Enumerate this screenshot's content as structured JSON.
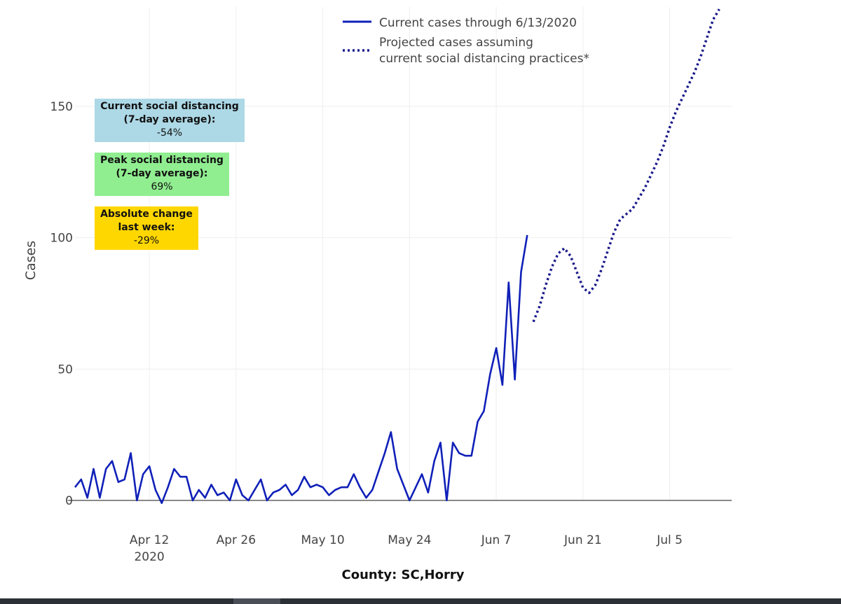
{
  "chart_data": {
    "type": "line",
    "ylabel": "Cases",
    "xlabel": "County: SC,Horry",
    "ylim": [
      0,
      187
    ],
    "xlim": [
      "2020-03-31",
      "2020-07-15"
    ],
    "yticks": [
      0,
      50,
      100,
      150
    ],
    "xticks": [
      {
        "date": "2020-04-12",
        "label": "Apr 12",
        "sub": "2020"
      },
      {
        "date": "2020-04-26",
        "label": "Apr 26",
        "sub": ""
      },
      {
        "date": "2020-05-10",
        "label": "May 10",
        "sub": ""
      },
      {
        "date": "2020-05-24",
        "label": "May 24",
        "sub": ""
      },
      {
        "date": "2020-06-07",
        "label": "Jun 7",
        "sub": ""
      },
      {
        "date": "2020-06-21",
        "label": "Jun 21",
        "sub": ""
      },
      {
        "date": "2020-07-05",
        "label": "Jul 5",
        "sub": ""
      }
    ],
    "grid": true,
    "legend_position": "top",
    "series": [
      {
        "name": "Current cases through 6/13/2020",
        "color": "#1020b8",
        "style": "solid",
        "points": [
          [
            "2020-03-31",
            5
          ],
          [
            "2020-04-01",
            8
          ],
          [
            "2020-04-02",
            1
          ],
          [
            "2020-04-03",
            12
          ],
          [
            "2020-04-04",
            1
          ],
          [
            "2020-04-05",
            12
          ],
          [
            "2020-04-06",
            15
          ],
          [
            "2020-04-07",
            7
          ],
          [
            "2020-04-08",
            8
          ],
          [
            "2020-04-09",
            18
          ],
          [
            "2020-04-10",
            0
          ],
          [
            "2020-04-11",
            10
          ],
          [
            "2020-04-12",
            13
          ],
          [
            "2020-04-13",
            4
          ],
          [
            "2020-04-14",
            -1
          ],
          [
            "2020-04-15",
            5
          ],
          [
            "2020-04-16",
            12
          ],
          [
            "2020-04-17",
            9
          ],
          [
            "2020-04-18",
            9
          ],
          [
            "2020-04-19",
            0
          ],
          [
            "2020-04-20",
            4
          ],
          [
            "2020-04-21",
            1
          ],
          [
            "2020-04-22",
            6
          ],
          [
            "2020-04-23",
            2
          ],
          [
            "2020-04-24",
            3
          ],
          [
            "2020-04-25",
            0
          ],
          [
            "2020-04-26",
            8
          ],
          [
            "2020-04-27",
            2
          ],
          [
            "2020-04-28",
            0
          ],
          [
            "2020-04-29",
            4
          ],
          [
            "2020-04-30",
            8
          ],
          [
            "2020-05-01",
            0
          ],
          [
            "2020-05-02",
            3
          ],
          [
            "2020-05-03",
            4
          ],
          [
            "2020-05-04",
            6
          ],
          [
            "2020-05-05",
            2
          ],
          [
            "2020-05-06",
            4
          ],
          [
            "2020-05-07",
            9
          ],
          [
            "2020-05-08",
            5
          ],
          [
            "2020-05-09",
            6
          ],
          [
            "2020-05-10",
            5
          ],
          [
            "2020-05-11",
            2
          ],
          [
            "2020-05-12",
            4
          ],
          [
            "2020-05-13",
            5
          ],
          [
            "2020-05-14",
            5
          ],
          [
            "2020-05-15",
            10
          ],
          [
            "2020-05-16",
            5
          ],
          [
            "2020-05-17",
            1
          ],
          [
            "2020-05-18",
            4
          ],
          [
            "2020-05-19",
            11
          ],
          [
            "2020-05-20",
            18
          ],
          [
            "2020-05-21",
            26
          ],
          [
            "2020-05-22",
            12
          ],
          [
            "2020-05-23",
            6
          ],
          [
            "2020-05-24",
            0
          ],
          [
            "2020-05-25",
            5
          ],
          [
            "2020-05-26",
            10
          ],
          [
            "2020-05-27",
            3
          ],
          [
            "2020-05-28",
            15
          ],
          [
            "2020-05-29",
            22
          ],
          [
            "2020-05-30",
            0
          ],
          [
            "2020-05-31",
            22
          ],
          [
            "2020-06-01",
            18
          ],
          [
            "2020-06-02",
            17
          ],
          [
            "2020-06-03",
            17
          ],
          [
            "2020-06-04",
            30
          ],
          [
            "2020-06-05",
            34
          ],
          [
            "2020-06-06",
            48
          ],
          [
            "2020-06-07",
            58
          ],
          [
            "2020-06-08",
            44
          ],
          [
            "2020-06-09",
            83
          ],
          [
            "2020-06-10",
            46
          ],
          [
            "2020-06-11",
            87
          ],
          [
            "2020-06-12",
            101
          ]
        ]
      },
      {
        "name": "Projected cases assuming current social distancing practices*",
        "color": "#1a1a8c",
        "style": "dotted",
        "points": [
          [
            "2020-06-13",
            68
          ],
          [
            "2020-06-14",
            74
          ],
          [
            "2020-06-15",
            82
          ],
          [
            "2020-06-16",
            89
          ],
          [
            "2020-06-17",
            94
          ],
          [
            "2020-06-18",
            96
          ],
          [
            "2020-06-19",
            93
          ],
          [
            "2020-06-20",
            87
          ],
          [
            "2020-06-21",
            81
          ],
          [
            "2020-06-22",
            79
          ],
          [
            "2020-06-23",
            82
          ],
          [
            "2020-06-24",
            88
          ],
          [
            "2020-06-25",
            95
          ],
          [
            "2020-06-26",
            102
          ],
          [
            "2020-06-27",
            107
          ],
          [
            "2020-06-28",
            109
          ],
          [
            "2020-06-29",
            111
          ],
          [
            "2020-06-30",
            115
          ],
          [
            "2020-07-01",
            119
          ],
          [
            "2020-07-02",
            124
          ],
          [
            "2020-07-03",
            129
          ],
          [
            "2020-07-04",
            135
          ],
          [
            "2020-07-05",
            142
          ],
          [
            "2020-07-06",
            148
          ],
          [
            "2020-07-07",
            153
          ],
          [
            "2020-07-08",
            158
          ],
          [
            "2020-07-09",
            163
          ],
          [
            "2020-07-10",
            169
          ],
          [
            "2020-07-11",
            176
          ],
          [
            "2020-07-12",
            183
          ],
          [
            "2020-07-13",
            187
          ]
        ]
      }
    ]
  },
  "legend": {
    "current_label": "Current cases through 6/13/2020",
    "projected_line1": "Projected cases assuming",
    "projected_line2": "current social distancing practices*"
  },
  "annotations": {
    "current": {
      "line1": "Current social distancing",
      "line2": "(7-day average):",
      "line3": "-54%",
      "color": "#add8e6"
    },
    "peak": {
      "line1": "Peak social distancing",
      "line2": "(7-day average):",
      "line3": "69%",
      "color": "#90ee90"
    },
    "absolute": {
      "line1": "Absolute change",
      "line2": "last week:",
      "line3": "-29%",
      "color": "#ffd700"
    }
  }
}
